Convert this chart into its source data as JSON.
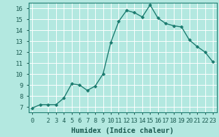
{
  "x": [
    0,
    1,
    2,
    3,
    4,
    5,
    6,
    7,
    8,
    9,
    10,
    11,
    12,
    13,
    14,
    15,
    16,
    17,
    18,
    19,
    20,
    21,
    22,
    23
  ],
  "y": [
    6.9,
    7.2,
    7.2,
    7.2,
    7.8,
    9.1,
    9.0,
    8.5,
    8.9,
    10.0,
    12.9,
    14.8,
    15.8,
    15.6,
    15.2,
    16.3,
    15.1,
    14.6,
    14.4,
    14.3,
    13.1,
    12.5,
    12.0,
    11.1
  ],
  "line_color": "#1a7a6e",
  "marker_color": "#1a7a6e",
  "bg_color": "#b3e8e0",
  "plot_bg_color": "#b3e8e0",
  "grid_color": "#d0f0eb",
  "xlabel": "Humidex (Indice chaleur)",
  "ylim": [
    6.5,
    16.5
  ],
  "xlim": [
    -0.5,
    23.5
  ],
  "yticks": [
    7,
    8,
    9,
    10,
    11,
    12,
    13,
    14,
    15,
    16
  ],
  "xticks": [
    0,
    2,
    3,
    4,
    5,
    6,
    7,
    8,
    9,
    10,
    11,
    12,
    13,
    14,
    15,
    16,
    17,
    18,
    19,
    20,
    21,
    22,
    23
  ],
  "xtick_labels": [
    "0",
    "2",
    "3",
    "4",
    "5",
    "6",
    "7",
    "8",
    "9",
    "10",
    "11",
    "12",
    "13",
    "14",
    "15",
    "16",
    "17",
    "18",
    "19",
    "20",
    "21",
    "22",
    "23"
  ],
  "tick_fontsize": 6.5,
  "xlabel_fontsize": 7.5,
  "line_width": 1.0,
  "marker_size": 2.5,
  "spine_color": "#1a7a6e"
}
